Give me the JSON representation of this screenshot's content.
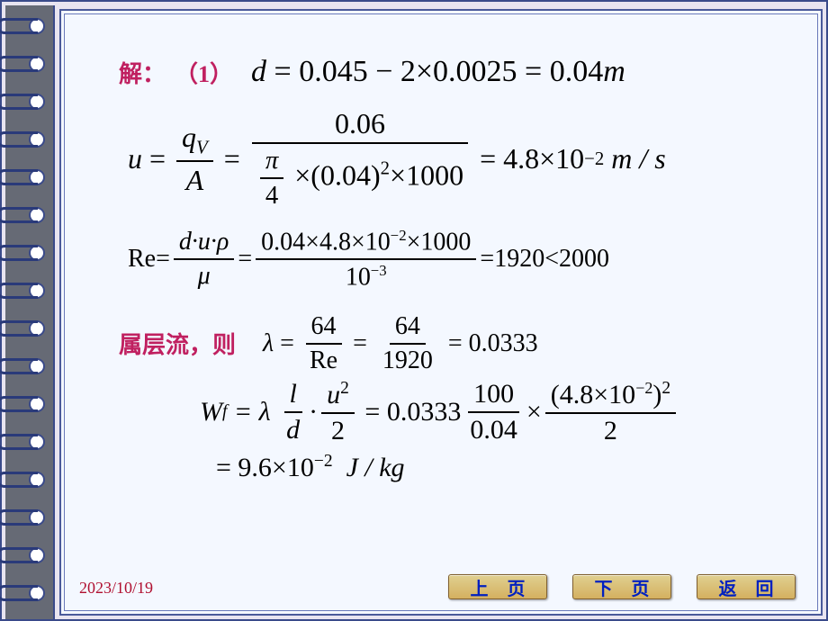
{
  "labels": {
    "solve": "解：",
    "part1": "（1）",
    "laminar": "属层流，则"
  },
  "eq1": {
    "lhs": "d",
    "rhs": "= 0.045 − 2×0.0025 = 0.04",
    "unit": "m"
  },
  "eq2": {
    "u": "u",
    "qV": "q",
    "qVsub": "V",
    "A": "A",
    "num2": "0.06",
    "pi": "π",
    "four": "4",
    "d2": "×(0.04)",
    "d2exp": "2",
    "thousand": "×1000",
    "result": "= 4.8×10",
    "exp": "−2",
    "unit": "m / s"
  },
  "eq3": {
    "Re": "Re",
    "num": "d·u·ρ",
    "den": "μ",
    "num2": "0.04×4.8×10",
    "num2exp": "−2",
    "num2b": "×1000",
    "den2": "10",
    "den2exp": "−3",
    "result": "=1920<2000"
  },
  "eq4": {
    "lambda": "λ",
    "n1": "64",
    "d1": "Re",
    "n2": "64",
    "d2": "1920",
    "result": "= 0.0333"
  },
  "eq5": {
    "Wf": "W",
    "Wfsub": "f",
    "lambda": "= λ",
    "l": "l",
    "d": "d",
    "u2n": "u",
    "u2exp": "2",
    "two": "2",
    "coef": "= 0.0333",
    "n1": "100",
    "d1": "0.04",
    "times": "×",
    "n2a": "(4.8×10",
    "n2exp": "−2",
    "n2b": ")",
    "n2sq": "2",
    "d2": "2"
  },
  "eq6": {
    "result": "= 9.6×10",
    "exp": "−2",
    "unit": "J / kg"
  },
  "footer": {
    "date": "2023/10/19",
    "prev": "上 页",
    "next": "下 页",
    "back": "返 回"
  },
  "style": {
    "accent_color": "#c02060",
    "button_text_color": "#0020c0",
    "frame_color": "#3a4a8a",
    "content_bg": "#f4f8ff"
  }
}
